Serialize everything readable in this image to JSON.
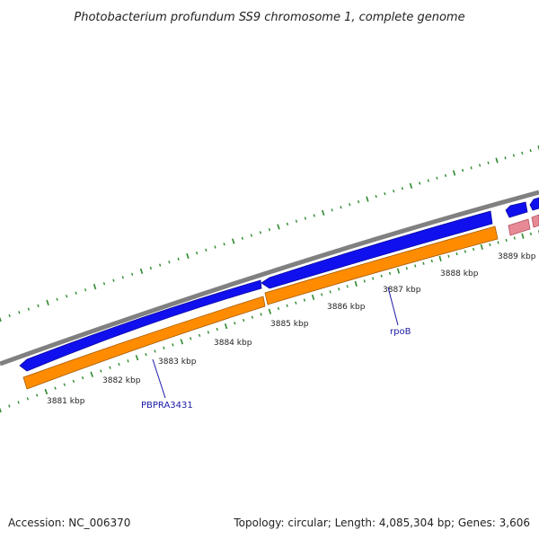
{
  "map": {
    "title": "Photobacterium profundum SS9 chromosome 1, complete genome",
    "accession": "Accession: NC_006370",
    "summary": "Topology: circular; Length: 4,085,304 bp; Genes: 3,606",
    "colors": {
      "backbone": "#808080",
      "gene_forward": "#1010ee",
      "gene_reverse": "#ff8c00",
      "gene_other": "#e88a95",
      "tick": "#2d8a2d",
      "label_line": "#1a1aa8"
    }
  },
  "ticks": [
    {
      "label": "3881 kbp"
    },
    {
      "label": "3882 kbp"
    },
    {
      "label": "3883 kbp"
    },
    {
      "label": "3884 kbp"
    },
    {
      "label": "3885 kbp"
    },
    {
      "label": "3886 kbp"
    },
    {
      "label": "3887 kbp"
    },
    {
      "label": "3888 kbp"
    },
    {
      "label": "3889 kbp"
    }
  ],
  "gene_labels": [
    {
      "name": "PBPRA3431"
    },
    {
      "name": "rpoB"
    }
  ]
}
